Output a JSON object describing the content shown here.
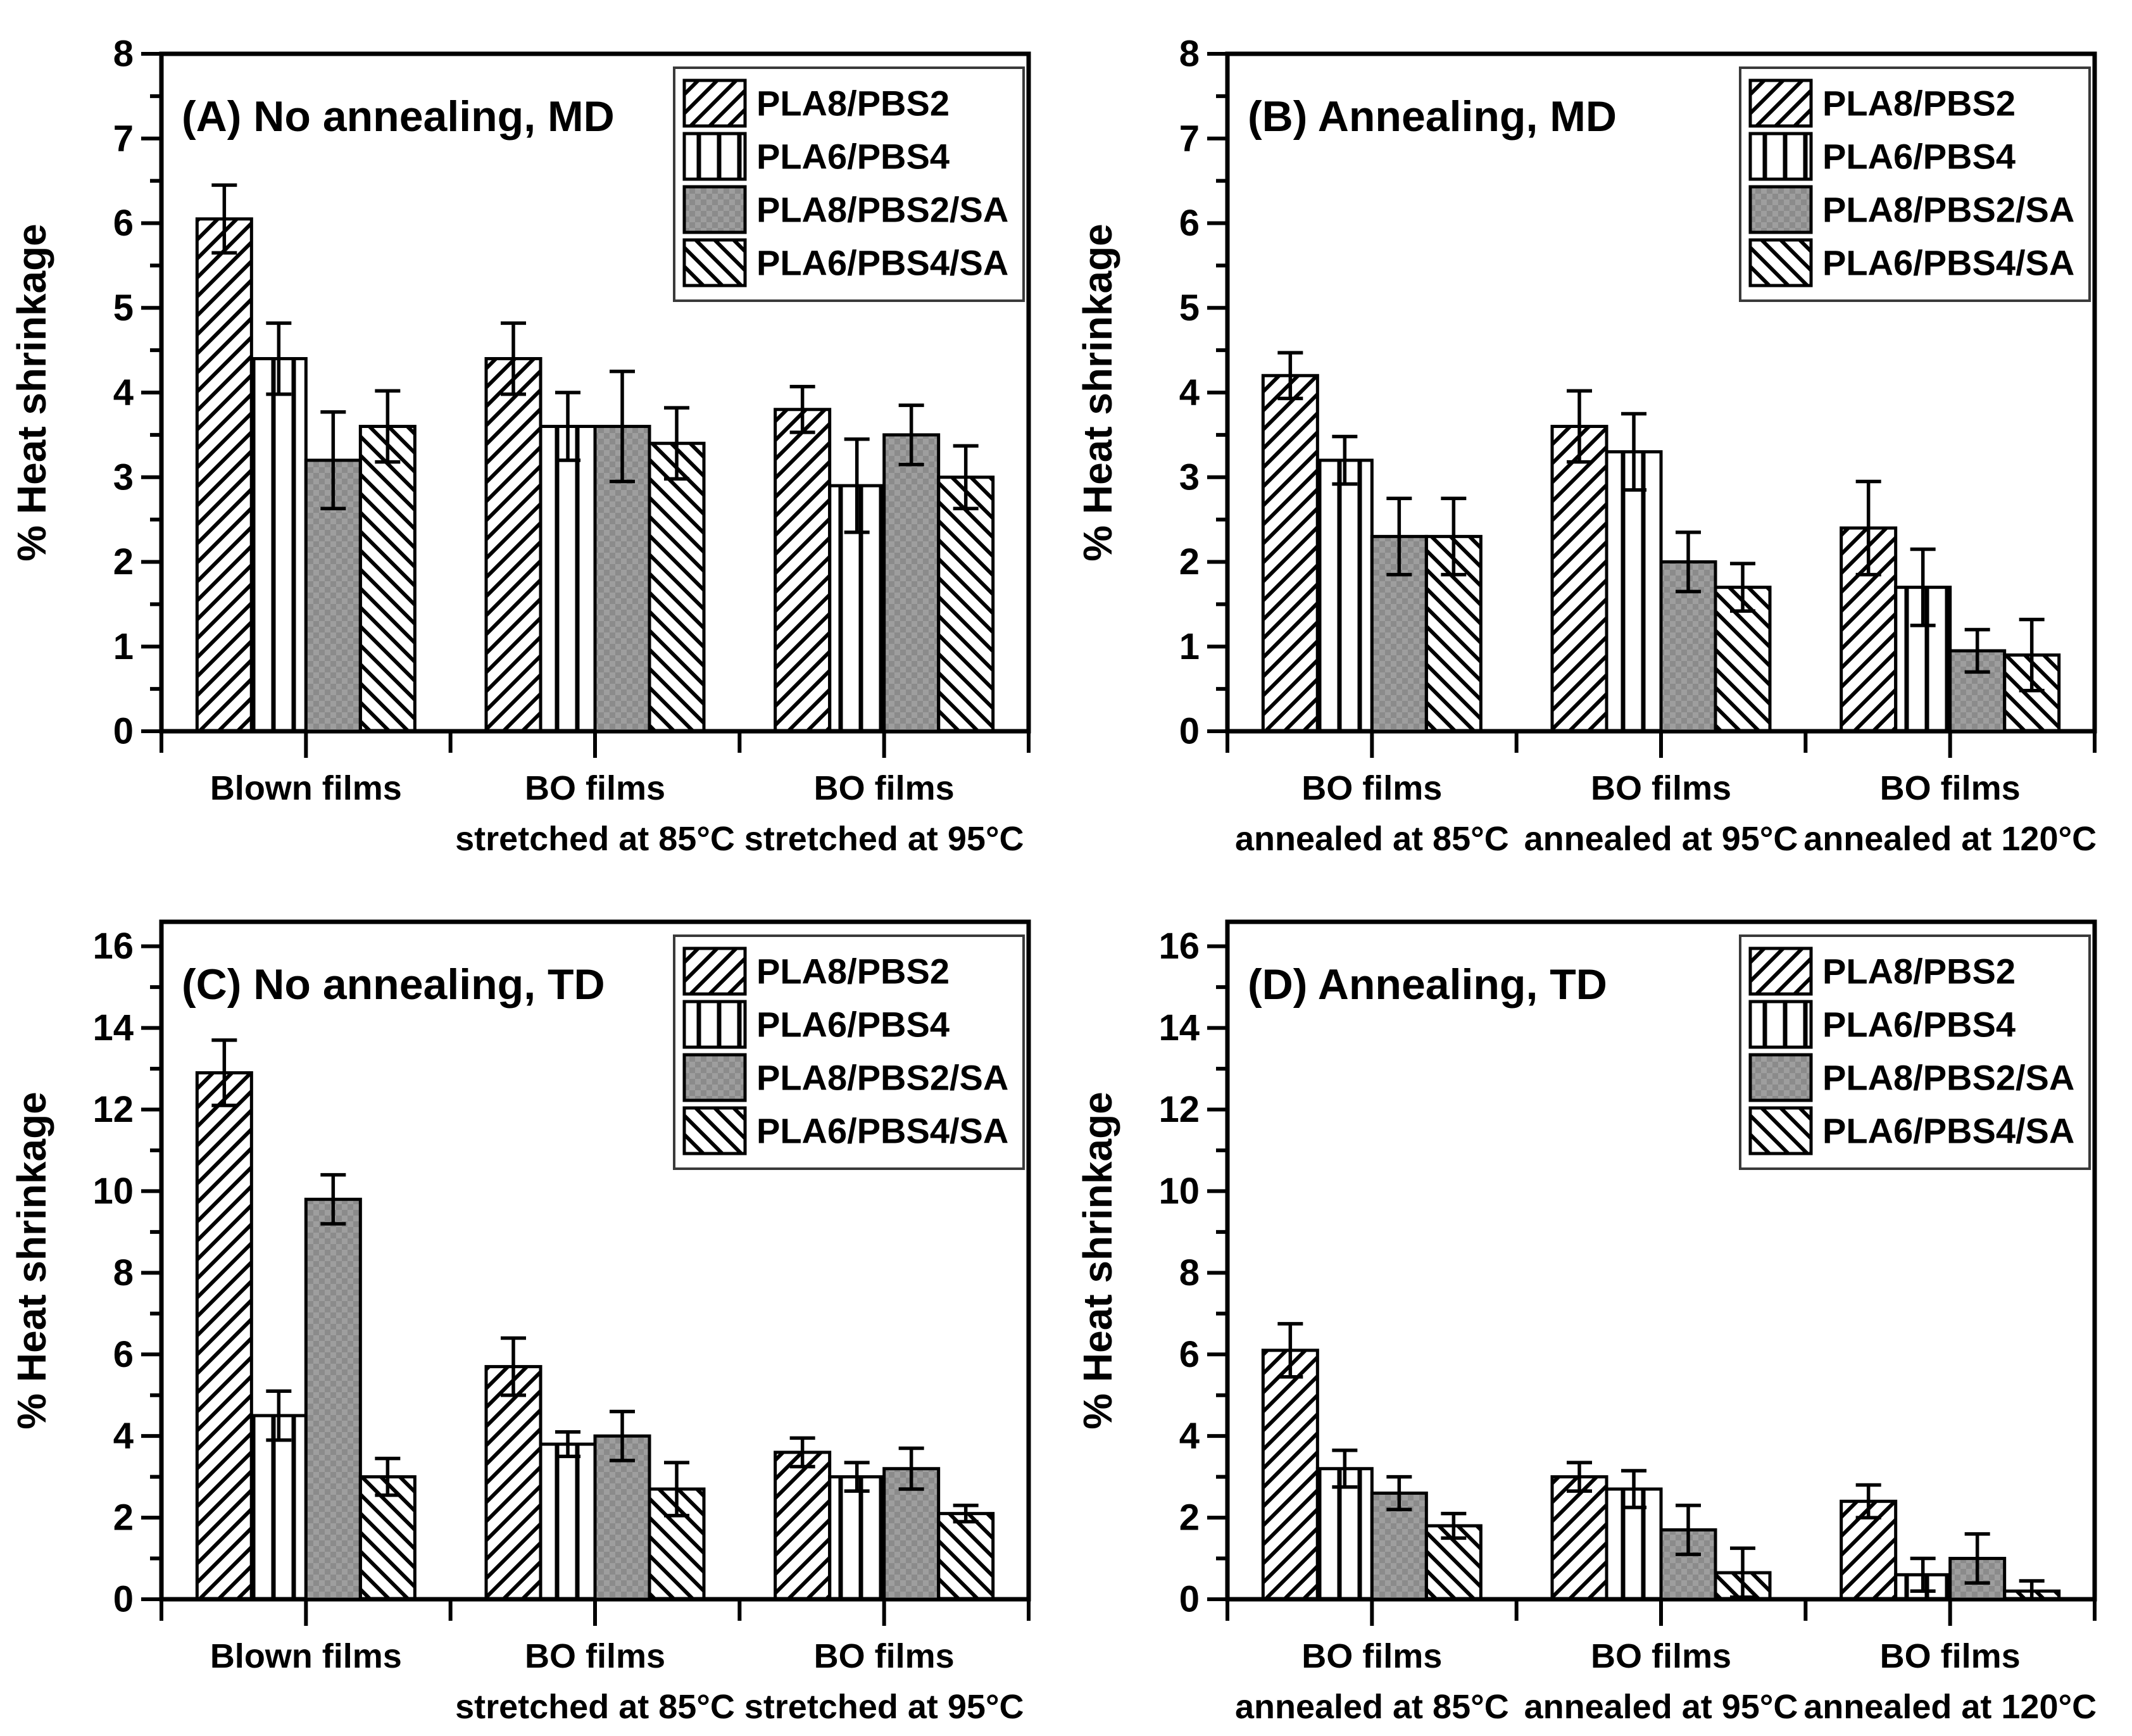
{
  "figure": {
    "background": "#ffffff",
    "ink": "#000000",
    "gray_fill": "#9e9e9e",
    "gray_check": "#8b8b8b",
    "legend_border": "#3a3a3a"
  },
  "chart_data": [
    {
      "id": "A",
      "type": "bar",
      "title": "(A) No annealing, MD",
      "ylabel": "% Heat shrinkage",
      "ylim": [
        0,
        8
      ],
      "ytick_step": 1,
      "yminor_step": 0.5,
      "ytick_max": 8,
      "grid": false,
      "legend_position": "top-right",
      "categories": [
        [
          "Blown films"
        ],
        [
          "BO films",
          "stretched at 85°C"
        ],
        [
          "BO films",
          "stretched at 95°C"
        ]
      ],
      "series": [
        {
          "name": "PLA8/PBS2",
          "pattern": "diag-up",
          "values": [
            6.05,
            4.4,
            3.8
          ],
          "errors": [
            0.4,
            0.42,
            0.27
          ]
        },
        {
          "name": "PLA6/PBS4",
          "pattern": "vertical",
          "values": [
            4.4,
            3.6,
            2.9
          ],
          "errors": [
            0.42,
            0.4,
            0.55
          ]
        },
        {
          "name": "PLA8/PBS2/SA",
          "pattern": "checker",
          "values": [
            3.2,
            3.6,
            3.5
          ],
          "errors": [
            0.57,
            0.65,
            0.35
          ]
        },
        {
          "name": "PLA6/PBS4/SA",
          "pattern": "diag-down",
          "values": [
            3.6,
            3.4,
            3.0
          ],
          "errors": [
            0.42,
            0.42,
            0.37
          ]
        }
      ]
    },
    {
      "id": "B",
      "type": "bar",
      "title": "(B) Annealing, MD",
      "ylabel": "% Heat shrinkage",
      "ylim": [
        0,
        8
      ],
      "ytick_step": 1,
      "yminor_step": 0.5,
      "ytick_max": 8,
      "grid": false,
      "legend_position": "top-right",
      "categories": [
        [
          "BO films",
          "annealed at 85°C"
        ],
        [
          "BO films",
          "annealed at 95°C"
        ],
        [
          "BO films",
          "annealed at 120°C"
        ]
      ],
      "series": [
        {
          "name": "PLA8/PBS2",
          "pattern": "diag-up",
          "values": [
            4.2,
            3.6,
            2.4
          ],
          "errors": [
            0.27,
            0.42,
            0.55
          ]
        },
        {
          "name": "PLA6/PBS4",
          "pattern": "vertical",
          "values": [
            3.2,
            3.3,
            1.7
          ],
          "errors": [
            0.28,
            0.45,
            0.45
          ]
        },
        {
          "name": "PLA8/PBS2/SA",
          "pattern": "checker",
          "values": [
            2.3,
            2.0,
            0.95
          ],
          "errors": [
            0.45,
            0.35,
            0.25
          ]
        },
        {
          "name": "PLA6/PBS4/SA",
          "pattern": "diag-down",
          "values": [
            2.3,
            1.7,
            0.9
          ],
          "errors": [
            0.45,
            0.28,
            0.42
          ]
        }
      ]
    },
    {
      "id": "C",
      "type": "bar",
      "title": "(C) No annealing, TD",
      "ylabel": "% Heat shrinkage",
      "ylim": [
        0,
        16.6
      ],
      "ytick_step": 2,
      "yminor_step": 1,
      "ytick_max": 16,
      "grid": false,
      "legend_position": "top-right",
      "categories": [
        [
          "Blown films"
        ],
        [
          "BO films",
          "stretched at 85°C"
        ],
        [
          "BO films",
          "stretched at 95°C"
        ]
      ],
      "series": [
        {
          "name": "PLA8/PBS2",
          "pattern": "diag-up",
          "values": [
            12.9,
            5.7,
            3.6
          ],
          "errors": [
            0.8,
            0.7,
            0.35
          ]
        },
        {
          "name": "PLA6/PBS4",
          "pattern": "vertical",
          "values": [
            4.5,
            3.8,
            3.0
          ],
          "errors": [
            0.6,
            0.3,
            0.35
          ]
        },
        {
          "name": "PLA8/PBS2/SA",
          "pattern": "checker",
          "values": [
            9.8,
            4.0,
            3.2
          ],
          "errors": [
            0.6,
            0.6,
            0.5
          ]
        },
        {
          "name": "PLA6/PBS4/SA",
          "pattern": "diag-down",
          "values": [
            3.0,
            2.7,
            2.1
          ],
          "errors": [
            0.45,
            0.65,
            0.2
          ]
        }
      ]
    },
    {
      "id": "D",
      "type": "bar",
      "title": "(D) Annealing, TD",
      "ylabel": "% Heat shrinkage",
      "ylim": [
        0,
        16.6
      ],
      "ytick_step": 2,
      "yminor_step": 1,
      "ytick_max": 16,
      "grid": false,
      "legend_position": "top-right",
      "categories": [
        [
          "BO films",
          "annealed at 85°C"
        ],
        [
          "BO films",
          "annealed at 95°C"
        ],
        [
          "BO films",
          "annealed at 120°C"
        ]
      ],
      "series": [
        {
          "name": "PLA8/PBS2",
          "pattern": "diag-up",
          "values": [
            6.1,
            3.0,
            2.4
          ],
          "errors": [
            0.65,
            0.35,
            0.4
          ]
        },
        {
          "name": "PLA6/PBS4",
          "pattern": "vertical",
          "values": [
            3.2,
            2.7,
            0.6
          ],
          "errors": [
            0.45,
            0.45,
            0.4
          ]
        },
        {
          "name": "PLA8/PBS2/SA",
          "pattern": "checker",
          "values": [
            2.6,
            1.7,
            1.0
          ],
          "errors": [
            0.4,
            0.6,
            0.6
          ]
        },
        {
          "name": "PLA6/PBS4/SA",
          "pattern": "diag-down",
          "values": [
            1.8,
            0.65,
            0.2
          ],
          "errors": [
            0.3,
            0.6,
            0.25
          ]
        }
      ]
    }
  ]
}
